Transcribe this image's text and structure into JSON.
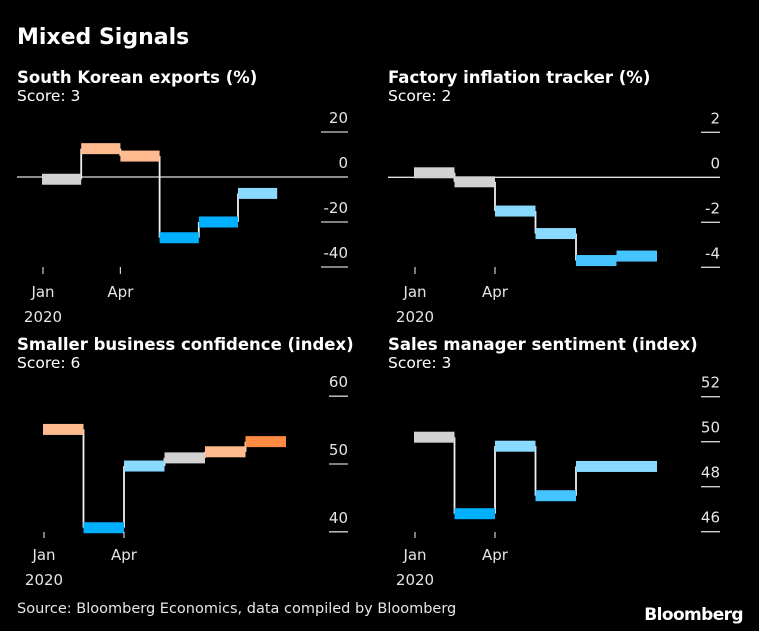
{
  "title": "Mixed Signals",
  "source": "Source: Bloomberg Economics, data compiled by Bloomberg",
  "logo": "Bloomberg",
  "chart_data": [
    {
      "type": "step",
      "title": "South Korean exports (%)",
      "subtitle": "Score: 3",
      "x_ticks": [
        "Jan",
        "Apr"
      ],
      "x_year": "2020",
      "y_ticks": [
        20,
        0,
        -20,
        -40
      ],
      "ylim": [
        -45,
        25
      ],
      "zero_line": true,
      "values": [
        -1,
        12.6,
        9.3,
        -27,
        -20,
        -7.3
      ],
      "colors": [
        "#d2d2d2",
        "#ffbb8f",
        "#ffbb8f",
        "#00b0ff",
        "#00b0ff",
        "#8ad9ff"
      ]
    },
    {
      "type": "step",
      "title": "Factory inflation tracker (%)",
      "subtitle": "Score: 2",
      "x_ticks": [
        "Jan",
        "Apr"
      ],
      "x_year": "2020",
      "y_ticks": [
        2,
        0,
        -2,
        -4
      ],
      "ylim": [
        -4.5,
        2.5
      ],
      "zero_line": true,
      "values": [
        0.2,
        -0.2,
        -1.5,
        -2.5,
        -3.7,
        -3.5
      ],
      "colors": [
        "#d2d2d2",
        "#d2d2d2",
        "#8ad9ff",
        "#8ad9ff",
        "#45c4ff",
        "#45c4ff"
      ]
    },
    {
      "type": "step",
      "title": "Smaller business confidence (index)",
      "subtitle": "Score: 6",
      "x_ticks": [
        "Jan",
        "Apr"
      ],
      "x_year": "2020",
      "y_ticks": [
        60,
        50,
        40
      ],
      "ylim": [
        39,
        61
      ],
      "zero_line": false,
      "values": [
        55.1,
        40.6,
        49.7,
        50.9,
        51.8,
        53.3
      ],
      "colors": [
        "#ffbb8f",
        "#00b0ff",
        "#8ad9ff",
        "#d2d2d2",
        "#ffbb8f",
        "#ff8c42"
      ]
    },
    {
      "type": "step",
      "title": "Sales manager sentiment (index)",
      "subtitle": "Score: 3",
      "x_ticks": [
        "Jan",
        "Apr"
      ],
      "x_year": "2020",
      "y_ticks": [
        52,
        50,
        48,
        46
      ],
      "ylim": [
        45.5,
        52.5
      ],
      "zero_line": false,
      "values": [
        50.2,
        46.8,
        49.8,
        47.6,
        48.9,
        48.9
      ],
      "colors": [
        "#d2d2d2",
        "#00b0ff",
        "#8ad9ff",
        "#45c4ff",
        "#8ad9ff",
        "#8ad9ff"
      ]
    }
  ]
}
